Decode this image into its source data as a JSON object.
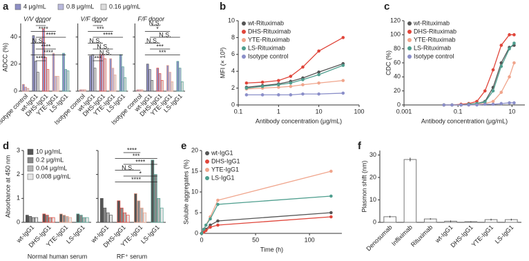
{
  "chart_data": [
    {
      "type": "bar",
      "panel_label": "a",
      "ylabel": "ADCC (%)",
      "ylim": [
        0,
        50
      ],
      "yticks": [
        0,
        20,
        40
      ],
      "legend_position": "top",
      "legend": [
        {
          "name": "4 μg/mL",
          "color": "#8e8fc4"
        },
        {
          "name": "0.8 μg/mL",
          "color": "#b9b9dc"
        },
        {
          "name": "0.16 μg/mL",
          "color": "#dcdcdc"
        }
      ],
      "categories": [
        "Isotype control",
        "wt-IgG1",
        "DHS-IgG1",
        "YTE-IgG1",
        "LS-IgG1"
      ],
      "category_colors": [
        "#d98a7c",
        "#555555",
        "#e0453a",
        "#f0a58c",
        "#4e9e8e"
      ],
      "panels": [
        {
          "title": "V/V donor",
          "values": [
            [
              5,
              41,
              46,
              28,
              28
            ],
            [
              3,
              22,
              25,
              11,
              16
            ],
            [
              2,
              14,
              16,
              11,
              15
            ]
          ],
          "annotations": [
            "****",
            "****",
            "****",
            "N.S.",
            "****",
            "****",
            "****"
          ]
        },
        {
          "title": "V/F donor",
          "values": [
            [
              1,
              26,
              27,
              24,
              27
            ],
            [
              1,
              27,
              27,
              17,
              18
            ],
            [
              1,
              17,
              24,
              12,
              10
            ]
          ],
          "annotations": [
            "***",
            "***",
            "****",
            "N.S.",
            "N.S.",
            "N.S.",
            "***"
          ]
        },
        {
          "title": "F/F donor",
          "values": [
            [
              1,
              20,
              17,
              19,
              22
            ],
            [
              1,
              16,
              13,
              14,
              17
            ],
            [
              1,
              8,
              8,
              7,
              7
            ]
          ],
          "annotations": [
            "N.S.",
            "*",
            "N.S.",
            "N.S.",
            "***",
            "***"
          ]
        }
      ]
    },
    {
      "type": "line",
      "panel_label": "b",
      "xlabel": "Antibody concentration (μg/mL)",
      "ylabel": "MFI (× 10³)",
      "xscale": "log",
      "xlim": [
        0.1,
        100
      ],
      "xticks": [
        0.1,
        1,
        10,
        100
      ],
      "ylim": [
        0,
        10
      ],
      "yticks": [
        0,
        2,
        4,
        6,
        8,
        10
      ],
      "legend": "upper left",
      "x": [
        0.16,
        0.4,
        1,
        2,
        4,
        10,
        40
      ],
      "series": [
        {
          "name": "wt-Rituximab",
          "color": "#555555",
          "values": [
            2.1,
            2.3,
            2.5,
            2.8,
            3.2,
            3.9,
            4.9
          ]
        },
        {
          "name": "DHS-Rituximab",
          "color": "#e0453a",
          "values": [
            2.6,
            2.7,
            2.9,
            3.4,
            4.5,
            6.4,
            8.0
          ]
        },
        {
          "name": "YTE-Rituximab",
          "color": "#f0a58c",
          "values": [
            1.9,
            2.0,
            2.1,
            2.2,
            2.4,
            2.6,
            2.9
          ]
        },
        {
          "name": "LS-Rituximab",
          "color": "#4e9e8e",
          "values": [
            2.0,
            2.2,
            2.4,
            2.6,
            3.0,
            3.6,
            4.7
          ]
        },
        {
          "name": "Isotype control",
          "color": "#8b8fc9",
          "values": [
            1.2,
            1.2,
            1.2,
            1.2,
            1.3,
            1.3,
            1.4
          ]
        }
      ]
    },
    {
      "type": "line",
      "panel_label": "c",
      "xlabel": "Antibody concentration (μg/mL)",
      "ylabel": "CDC (%)",
      "xscale": "log",
      "xlim": [
        0.001,
        30
      ],
      "xticks": [
        0.001,
        0.1,
        10
      ],
      "ylim": [
        0,
        120
      ],
      "yticks": [
        0,
        20,
        40,
        60,
        80,
        100,
        120
      ],
      "legend": "upper left",
      "x": [
        0.03,
        0.06,
        0.13,
        0.25,
        0.5,
        1,
        2,
        4,
        8,
        12
      ],
      "series": [
        {
          "name": "wt-Rituximab",
          "color": "#555555",
          "values": [
            0,
            0,
            0,
            1,
            2,
            5,
            25,
            60,
            82,
            85
          ]
        },
        {
          "name": "DHS-Rituximab",
          "color": "#e0453a",
          "values": [
            0,
            0,
            1,
            2,
            5,
            20,
            50,
            85,
            100,
            100
          ]
        },
        {
          "name": "YTE-Rituximab",
          "color": "#f0a58c",
          "values": [
            0,
            0,
            0,
            0,
            1,
            2,
            5,
            18,
            40,
            60
          ]
        },
        {
          "name": "LS-Rituximab",
          "color": "#4e9e8e",
          "values": [
            0,
            0,
            0,
            1,
            2,
            4,
            20,
            55,
            80,
            88
          ]
        },
        {
          "name": "Isotype control",
          "color": "#8b8fc9",
          "values": [
            0,
            0,
            0,
            0,
            0,
            1,
            1,
            2,
            3,
            3
          ]
        }
      ]
    },
    {
      "type": "bar",
      "panel_label": "d",
      "ylabel": "Absorbance at 450 nm",
      "ylim": [
        0,
        3
      ],
      "yticks": [
        0,
        1,
        2,
        3
      ],
      "legend_position": "upper left",
      "legend": [
        {
          "name": "10 μg/mL",
          "color": "#555555"
        },
        {
          "name": "0.2 μg/mL",
          "color": "#888888"
        },
        {
          "name": "0.04 μg/mL",
          "color": "#b5b5b5"
        },
        {
          "name": "0.008 μg/mL",
          "color": "#e6e6e6"
        }
      ],
      "categories": [
        "wt-IgG1",
        "DHS-IgG1",
        "YTE-IgG1",
        "LS-IgG1"
      ],
      "category_colors": [
        "#555555",
        "#e0453a",
        "#f0a58c",
        "#4e9e8e"
      ],
      "panels": [
        {
          "title": "Normal human serum",
          "values": [
            [
              0.3,
              0.35,
              0.35,
              0.35
            ],
            [
              0.25,
              0.3,
              0.3,
              0.3
            ],
            [
              0.2,
              0.2,
              0.25,
              0.2
            ],
            [
              0.2,
              0.2,
              0.2,
              0.2
            ]
          ],
          "annotations": []
        },
        {
          "title": "RF⁺ serum",
          "values": [
            [
              1.0,
              0.9,
              1.2,
              2.6
            ],
            [
              0.6,
              0.6,
              0.9,
              2.0
            ],
            [
              0.4,
              0.4,
              0.6,
              1.0
            ],
            [
              0.3,
              0.3,
              0.4,
              0.6
            ]
          ],
          "annotations": [
            "****",
            "***",
            "****",
            "N.S.",
            "*",
            "****"
          ]
        }
      ]
    },
    {
      "type": "line",
      "panel_label": "e",
      "xlabel": "Time (h)",
      "ylabel": "Soluble aggregates (%)",
      "xscale": "linear",
      "xlim": [
        0,
        130
      ],
      "xticks": [
        0,
        50,
        100
      ],
      "ylim": [
        0,
        20
      ],
      "yticks": [
        0,
        5,
        10,
        15,
        20
      ],
      "legend": "upper left",
      "x": [
        0,
        2,
        4,
        8,
        15,
        120
      ],
      "series": [
        {
          "name": "wt-IgG1",
          "color": "#555555",
          "values": [
            0,
            0.5,
            1,
            2,
            3,
            5
          ]
        },
        {
          "name": "DHS-IgG1",
          "color": "#e0453a",
          "values": [
            0,
            0.3,
            0.7,
            1.5,
            2,
            4
          ]
        },
        {
          "name": "YTE-IgG1",
          "color": "#f0a58c",
          "values": [
            0,
            1,
            2,
            4,
            8,
            15
          ]
        },
        {
          "name": "LS-IgG1",
          "color": "#4e9e8e",
          "values": [
            0,
            1,
            2,
            3.5,
            7,
            9
          ]
        }
      ]
    },
    {
      "type": "bar",
      "panel_label": "f",
      "ylabel": "Plasmon shift (nm)",
      "ylim": [
        0,
        32
      ],
      "yticks": [
        0,
        10,
        20,
        30
      ],
      "color": "#777777",
      "categories": [
        "Denosumab",
        "Infliximab",
        "Rituximab",
        "wt-IgG1",
        "DHS-IgG1",
        "YTE-IgG1",
        "LS-IgG1"
      ],
      "category_colors": [
        "#222222",
        "#222222",
        "#222222",
        "#555555",
        "#e0453a",
        "#f0a58c",
        "#4e9e8e"
      ],
      "values": [
        2.5,
        28,
        1.5,
        0.5,
        0.3,
        1.2,
        1.2
      ],
      "errors": [
        0.4,
        0.8,
        0.3,
        0.3,
        0.2,
        0.4,
        0.4
      ]
    }
  ]
}
